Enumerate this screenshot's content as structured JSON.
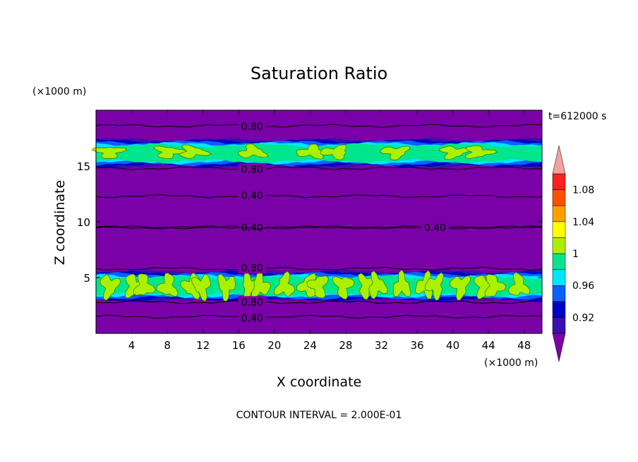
{
  "chart_data": {
    "type": "contour",
    "title": "Saturation Ratio",
    "xlabel": "X coordinate",
    "ylabel": "Z coordinate",
    "x_unit_label": "(×1000 m)",
    "y_unit_label": "(×1000 m)",
    "time_label": "t=612000 s",
    "contour_interval_label": "CONTOUR INTERVAL = 2.000E-01",
    "xlim": [
      0,
      50
    ],
    "ylim": [
      0,
      20
    ],
    "x_ticks": [
      4,
      8,
      12,
      16,
      20,
      24,
      28,
      32,
      36,
      40,
      44,
      48
    ],
    "y_ticks": [
      5,
      10,
      15
    ],
    "x_tick_labels": [
      "4",
      "8",
      "12",
      "16",
      "20",
      "24",
      "28",
      "32",
      "36",
      "40",
      "44",
      "48"
    ],
    "y_tick_labels": [
      "5",
      "10",
      "15"
    ],
    "colorbar": {
      "levels": [
        0.9,
        0.92,
        0.94,
        0.96,
        0.98,
        1.0,
        1.02,
        1.04,
        1.06,
        1.08,
        1.1
      ],
      "labels": [
        "0.92",
        "0.96",
        "1",
        "1.04",
        "1.08"
      ],
      "colors": [
        "#7a00a8",
        "#3a10b0",
        "#0000c8",
        "#0a60ff",
        "#00e6ff",
        "#00e68c",
        "#aaf000",
        "#ffff00",
        "#ffa000",
        "#ff5000",
        "#ff2020",
        "#f5a0a0"
      ]
    },
    "bands": [
      {
        "name": "upper-saturated-layer",
        "z_bottom": 15.0,
        "z_top": 17.3,
        "peak_value": 1.02
      },
      {
        "name": "lower-saturated-layer",
        "z_bottom": 3.0,
        "z_top": 5.5,
        "peak_value": 1.02
      }
    ],
    "contour_lines": [
      {
        "z": 18.6,
        "label": "0.80",
        "label_x": 17.5
      },
      {
        "z": 14.8,
        "label": "0.80",
        "label_x": 17.5
      },
      {
        "z": 12.3,
        "label": "0.40",
        "label_x": 17.5
      },
      {
        "z": 9.5,
        "label": "0.40",
        "label_x": 17.5
      },
      {
        "z": 9.5,
        "label": "0.40",
        "label_x": 38.0
      },
      {
        "z": 5.8,
        "label": "0.80",
        "label_x": 17.5
      },
      {
        "z": 2.8,
        "label": "0.80",
        "label_x": 17.5
      },
      {
        "z": 1.5,
        "label": "0.40",
        "label_x": 17.5
      }
    ]
  }
}
